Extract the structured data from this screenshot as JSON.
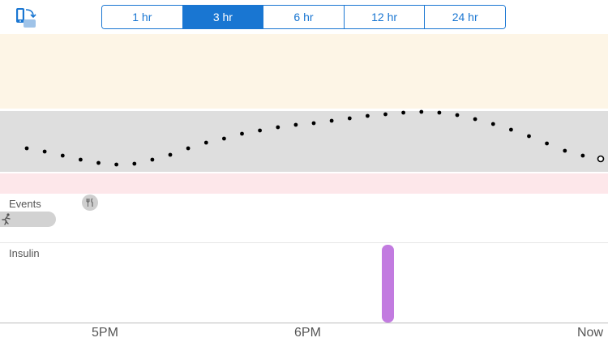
{
  "toolbar": {
    "rotate_icon": "phone-rotate-icon",
    "range_options": [
      "1 hr",
      "3 hr",
      "6 hr",
      "12 hr",
      "24 hr"
    ],
    "selected_range": "3 hr"
  },
  "events": {
    "label": "Events",
    "meal_icon": "fork-knife-icon",
    "exercise_icon": "running-icon"
  },
  "insulin": {
    "label": "Insulin"
  },
  "x_axis": {
    "labels": [
      "5PM",
      "6PM",
      "Now"
    ]
  },
  "colors": {
    "accent": "#1976d2",
    "high_band": "#fdf5e6",
    "target_band": "#dedede",
    "low_band": "#fde7ea",
    "insulin": "#c27be0",
    "glucose_dot": "#000000"
  }
}
